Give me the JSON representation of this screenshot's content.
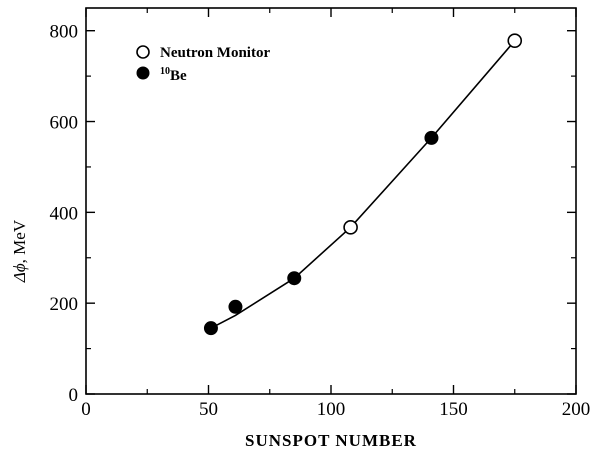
{
  "chart_data": {
    "type": "scatter",
    "xlabel": "SUNSPOT NUMBER",
    "ylabel_symbol": "Δϕ",
    "ylabel_unit": ", MeV",
    "xlim": [
      0,
      200
    ],
    "ylim": [
      0,
      850
    ],
    "xticks": [
      0,
      50,
      100,
      150,
      200
    ],
    "yticks": [
      0,
      200,
      400,
      600,
      800
    ],
    "grid": false,
    "legend_position": "top-left",
    "legend": [
      {
        "label": "Neutron Monitor",
        "marker": "open-circle"
      },
      {
        "label_sup": "10",
        "label": "Be",
        "marker": "filled-circle"
      }
    ],
    "series": [
      {
        "name": "Neutron Monitor",
        "marker": "open-circle",
        "points": [
          {
            "x": 108,
            "y": 367
          },
          {
            "x": 175,
            "y": 778
          }
        ]
      },
      {
        "name": "10Be",
        "marker": "filled-circle",
        "points": [
          {
            "x": 51,
            "y": 145
          },
          {
            "x": 61,
            "y": 192
          },
          {
            "x": 85,
            "y": 255
          },
          {
            "x": 141,
            "y": 564
          }
        ]
      }
    ],
    "fit_line": [
      {
        "x": 51,
        "y": 145
      },
      {
        "x": 61,
        "y": 173
      },
      {
        "x": 85,
        "y": 255
      },
      {
        "x": 108,
        "y": 367
      },
      {
        "x": 141,
        "y": 564
      },
      {
        "x": 175,
        "y": 778
      }
    ],
    "colors": {
      "ink": "#000000",
      "background": "#ffffff"
    }
  }
}
